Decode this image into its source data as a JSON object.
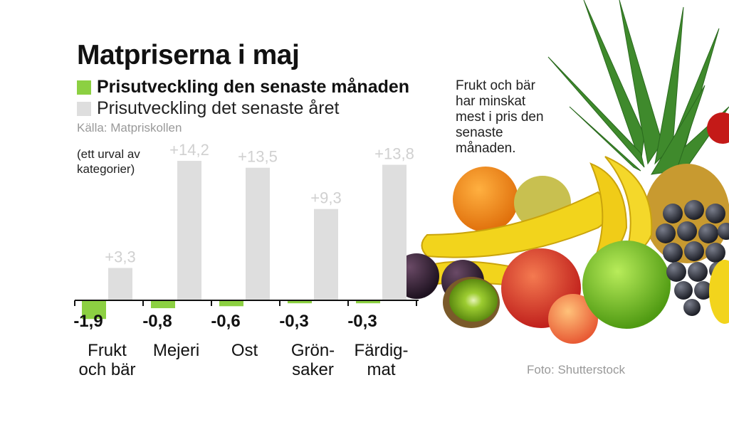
{
  "title": "Matpriserna i maj",
  "legend": {
    "month_label": "Prisutveckling den senaste månaden",
    "year_label": "Prisutveckling det senaste året"
  },
  "source": "Källa: Matpriskollen",
  "note": "(ett urval av kategorier)",
  "annotation": "Frukt och bär har minskat mest i pris den senaste månaden.",
  "photo_credit": "Foto: Shutterstock",
  "colors": {
    "month": "#8cd042",
    "year": "#dedede",
    "axis": "#111111",
    "year_label": "#d0d0d0"
  },
  "chart_data": {
    "type": "bar",
    "categories": [
      [
        "Frukt",
        "och bär"
      ],
      [
        "Mejeri"
      ],
      [
        "Ost"
      ],
      [
        "Grön-",
        "saker"
      ],
      [
        "Färdig-",
        "mat"
      ]
    ],
    "series": [
      {
        "name": "Prisutveckling den senaste månaden",
        "values": [
          -1.9,
          -0.8,
          -0.6,
          -0.3,
          -0.3
        ],
        "labels": [
          "-1,9",
          "-0,8",
          "-0,6",
          "-0,3",
          "-0,3"
        ]
      },
      {
        "name": "Prisutveckling det senaste året",
        "values": [
          3.3,
          14.2,
          13.5,
          9.3,
          13.8
        ],
        "labels": [
          "+3,3",
          "+14,2",
          "+13,5",
          "+9,3",
          "+13,8"
        ]
      }
    ],
    "ylim": [
      -2,
      15
    ]
  }
}
